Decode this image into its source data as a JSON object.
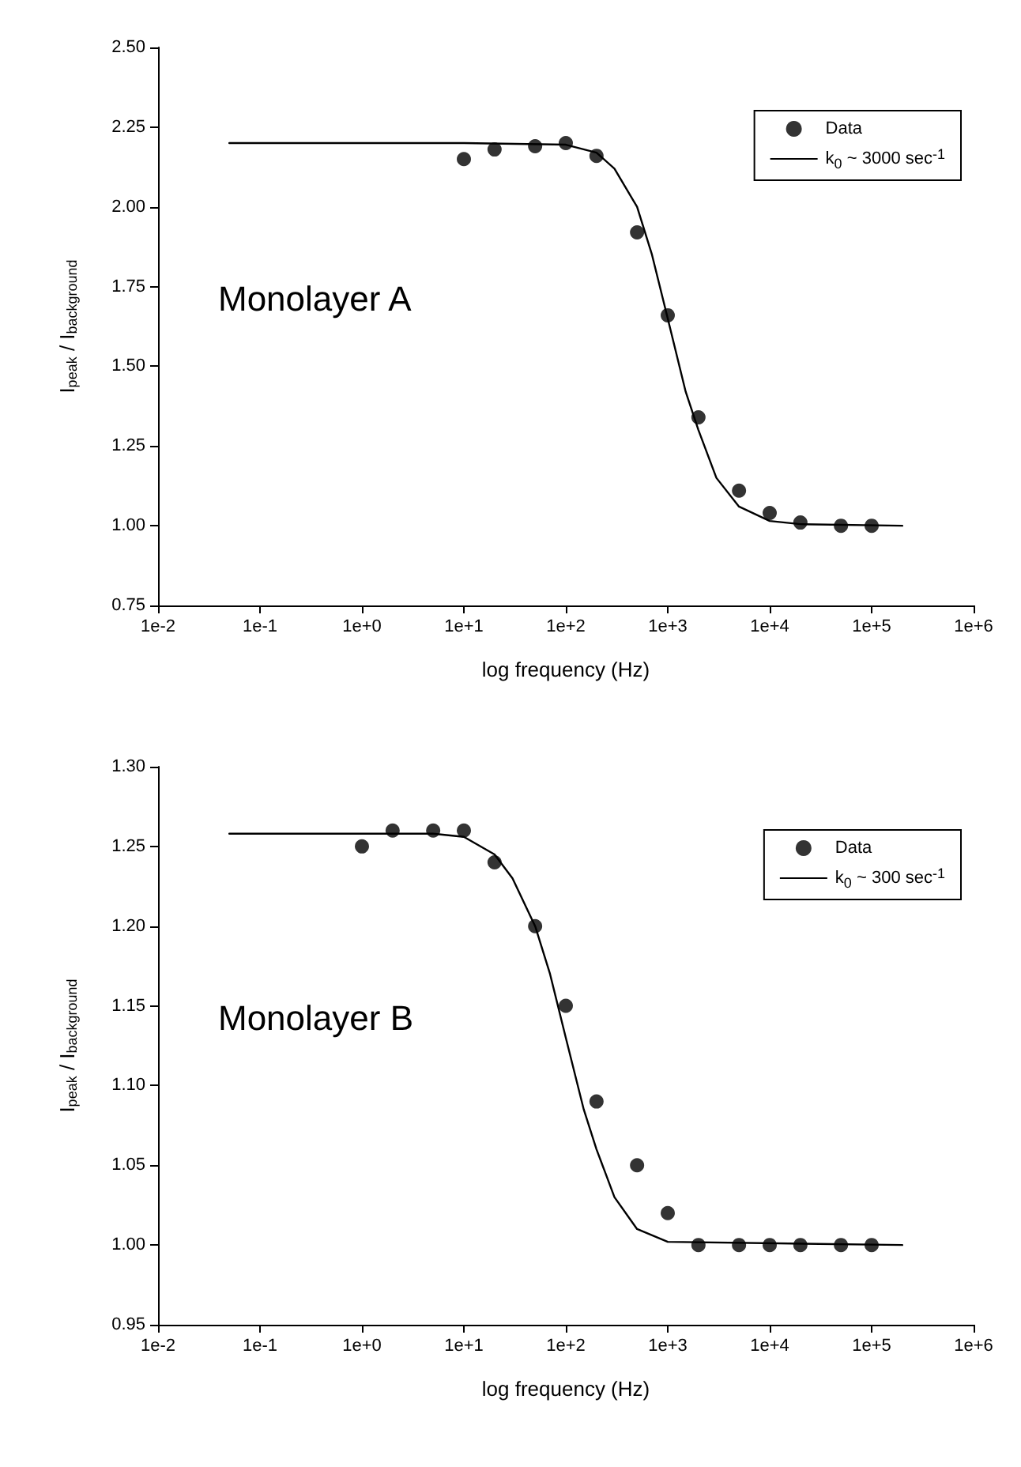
{
  "chart_data": [
    {
      "type": "scatter",
      "xlabel": "log frequency (Hz)",
      "ylabel": "I$_{peak}$ / I$_{background}$",
      "log": "x",
      "xlim": [
        0.01,
        1000000
      ],
      "xticks": [
        {
          "value": 0.01,
          "label": "1e-2"
        },
        {
          "value": 0.1,
          "label": "1e-1"
        },
        {
          "value": 1,
          "label": "1e+0"
        },
        {
          "value": 10,
          "label": "1e+1"
        },
        {
          "value": 100,
          "label": "1e+2"
        },
        {
          "value": 1000,
          "label": "1e+3"
        },
        {
          "value": 10000,
          "label": "1e+4"
        },
        {
          "value": 100000,
          "label": "1e+5"
        },
        {
          "value": 1000000,
          "label": "1e+6"
        }
      ],
      "ylim": [
        0.75,
        2.5
      ],
      "yticks": [
        0.75,
        {
          "value": 1,
          "label": "1.00"
        },
        1.25,
        {
          "value": 1.5,
          "label": "1.50"
        },
        1.75,
        {
          "value": 2,
          "label": "2.00"
        },
        2.25,
        {
          "value": 2.5,
          "label": "2.50"
        }
      ],
      "grid": false,
      "legend": "top right",
      "annotations": [
        "Monolayer A"
      ],
      "series": [
        {
          "name": "Data",
          "marker": "circle",
          "color": "#000000",
          "x": [
            10,
            20,
            50,
            100,
            200,
            500,
            1000,
            2000,
            5000,
            10000,
            20000,
            50000,
            100000
          ],
          "values": [
            2.15,
            2.18,
            2.19,
            2.2,
            2.16,
            1.92,
            1.66,
            1.34,
            1.11,
            1.04,
            1.01,
            1.0,
            1.0
          ]
        },
        {
          "name": "k$_{0}$ ~ 3000 sec$^{-1}$",
          "type": "line",
          "marker": "none",
          "line_style": "solid",
          "color": "#000000",
          "x": [
            0.05,
            10,
            100,
            200,
            300,
            500,
            700,
            1000,
            1500,
            2000,
            3000,
            5000,
            10000,
            20000,
            200000
          ],
          "values": [
            2.2,
            2.2,
            2.195,
            2.17,
            2.12,
            2.0,
            1.85,
            1.65,
            1.42,
            1.3,
            1.15,
            1.06,
            1.015,
            1.005,
            1.0
          ]
        }
      ]
    },
    {
      "type": "scatter",
      "xlabel": "log frequency (Hz)",
      "ylabel": "I$_{peak}$ / I$_{background}$",
      "log": "x",
      "xlim": [
        0.01,
        1000000
      ],
      "xticks": [
        {
          "value": 0.01,
          "label": "1e-2"
        },
        {
          "value": 0.1,
          "label": "1e-1"
        },
        {
          "value": 1,
          "label": "1e+0"
        },
        {
          "value": 10,
          "label": "1e+1"
        },
        {
          "value": 100,
          "label": "1e+2"
        },
        {
          "value": 1000,
          "label": "1e+3"
        },
        {
          "value": 10000,
          "label": "1e+4"
        },
        {
          "value": 100000,
          "label": "1e+5"
        },
        {
          "value": 1000000,
          "label": "1e+6"
        }
      ],
      "ylim": [
        0.95,
        1.3
      ],
      "yticks": [
        0.95,
        {
          "value": 1,
          "label": "1.00"
        },
        1.05,
        {
          "value": 1.1,
          "label": "1.10"
        },
        1.15,
        {
          "value": 1.2,
          "label": "1.20"
        },
        1.25,
        {
          "value": 1.3,
          "label": "1.30"
        }
      ],
      "grid": false,
      "legend": "top right",
      "annotations": [
        "Monolayer B"
      ],
      "series": [
        {
          "name": "Data",
          "marker": "circle",
          "color": "#000000",
          "x": [
            1,
            2,
            5,
            10,
            20,
            50,
            100,
            200,
            500,
            1000,
            2000,
            5000,
            10000,
            20000,
            50000,
            100000
          ],
          "values": [
            1.25,
            1.26,
            1.26,
            1.26,
            1.24,
            1.2,
            1.15,
            1.09,
            1.05,
            1.02,
            1.0,
            1.0,
            1.0,
            1.0,
            1.0,
            1.0
          ]
        },
        {
          "name": "k$_{0}$ ~ 300 sec$^{-1}$",
          "type": "line",
          "marker": "none",
          "line_style": "solid",
          "color": "#000000",
          "x": [
            0.05,
            5,
            10,
            20,
            30,
            50,
            70,
            100,
            150,
            200,
            300,
            500,
            1000,
            200000
          ],
          "values": [
            1.258,
            1.258,
            1.256,
            1.245,
            1.23,
            1.2,
            1.17,
            1.13,
            1.085,
            1.06,
            1.03,
            1.01,
            1.002,
            1.0
          ]
        }
      ]
    }
  ]
}
